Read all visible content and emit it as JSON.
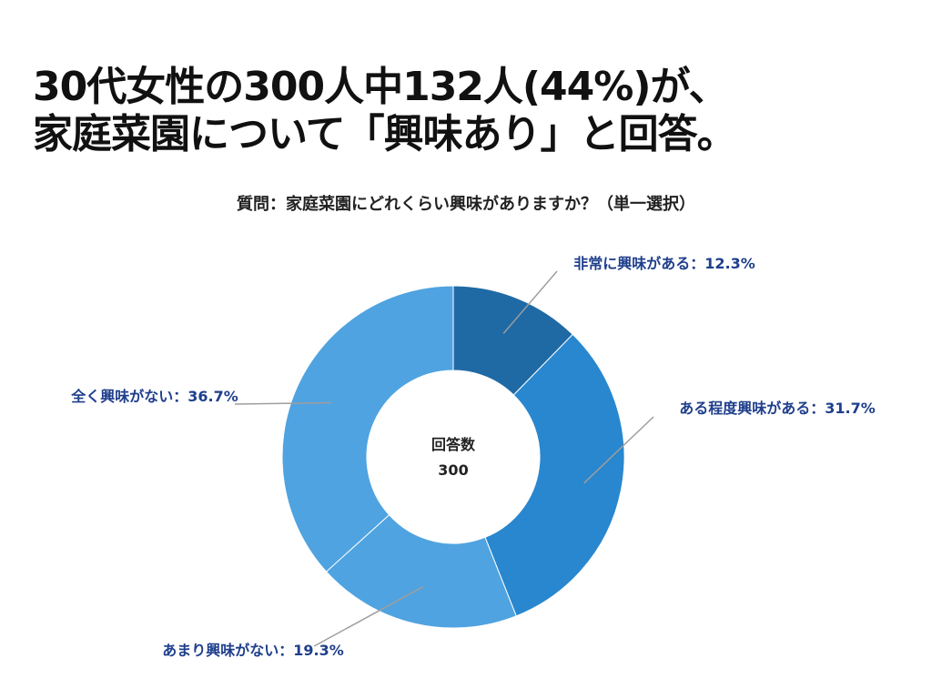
{
  "title": {
    "line1": "30代女性の300人中132人(44%)が、",
    "line2": "家庭菜園について「興味あり」と回答。"
  },
  "question": "質問：家庭菜園にどれくらい興味がありますか？（単一選択）",
  "center": {
    "label": "回答数",
    "value": "300"
  },
  "chart_data": {
    "type": "pie",
    "variant": "donut",
    "categories": [
      "非常に興味がある",
      "ある程度興味がある",
      "あまり興味がない",
      "全く興味がない"
    ],
    "values": [
      12.3,
      31.7,
      19.3,
      36.7
    ],
    "unit": "%",
    "labels": [
      "非常に興味がある：12.3%",
      "ある程度興味がある：31.7%",
      "あまり興味がない：19.3%",
      "全く興味がない：36.7%"
    ],
    "colors": [
      "#1f6aa5",
      "#2887cf",
      "#4fa3e0",
      "#4fa3e0"
    ],
    "label_color": "#1f3f8c",
    "leader_color": "#9e9e9e",
    "slice_separator_color": "#ffffff"
  }
}
